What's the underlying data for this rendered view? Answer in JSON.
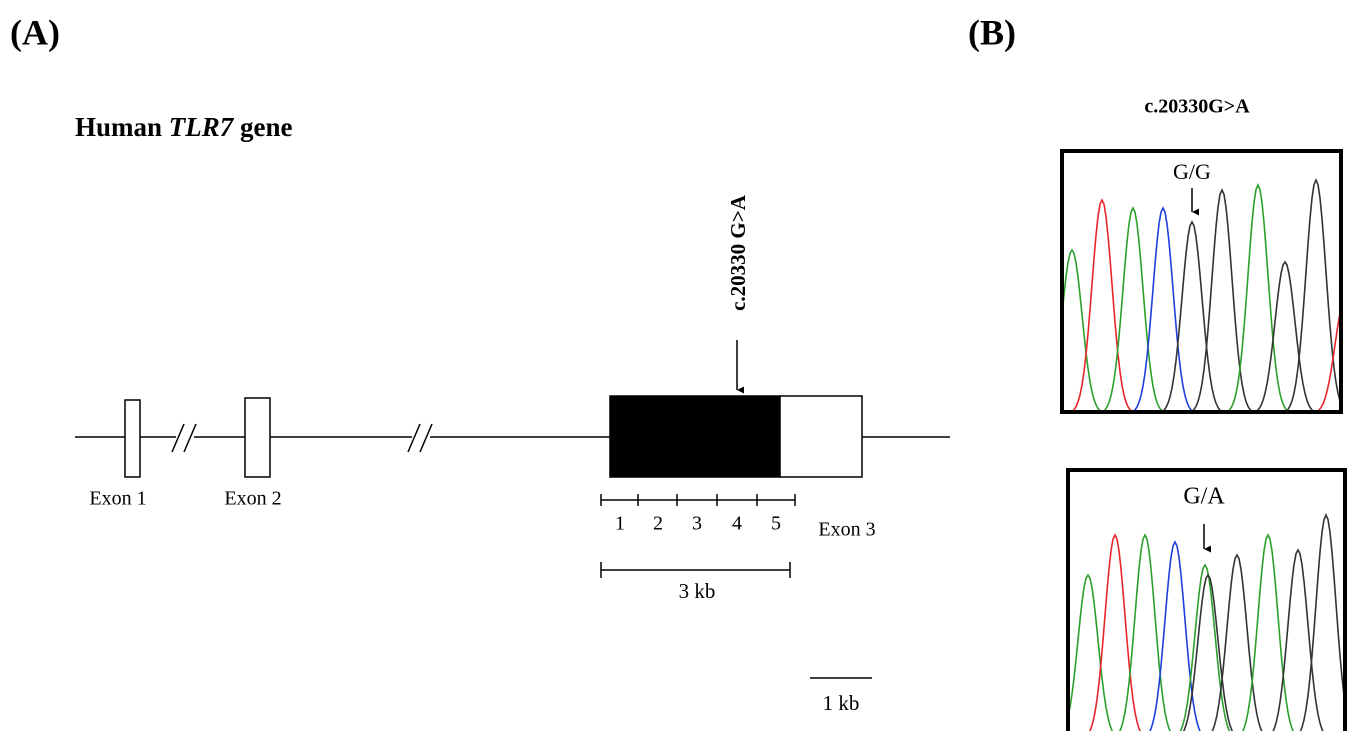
{
  "panel_a": {
    "label": "(A)",
    "title": {
      "prefix": "Human ",
      "gene": "TLR7",
      "suffix": " gene"
    },
    "exons": [
      "Exon 1",
      "Exon 2",
      "Exon 3"
    ],
    "variant": "c.20330 G>A",
    "fragments": [
      "1",
      "2",
      "3",
      "4",
      "5"
    ],
    "span_label": "3 kb",
    "scale_label": "1 kb"
  },
  "panel_b": {
    "label": "(B)",
    "title": "c.20330G>A",
    "genotypes": [
      "G/G",
      "G/A"
    ]
  }
}
